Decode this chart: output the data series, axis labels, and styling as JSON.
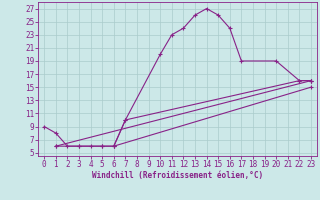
{
  "bg_color": "#cce8e8",
  "grid_color": "#aacccc",
  "line_color": "#882288",
  "xlim": [
    -0.5,
    23.5
  ],
  "ylim": [
    4.5,
    28
  ],
  "xticks": [
    0,
    1,
    2,
    3,
    4,
    5,
    6,
    7,
    8,
    9,
    10,
    11,
    12,
    13,
    14,
    15,
    16,
    17,
    18,
    19,
    20,
    21,
    22,
    23
  ],
  "yticks": [
    5,
    7,
    9,
    11,
    13,
    15,
    17,
    19,
    21,
    23,
    25,
    27
  ],
  "xlabel": "Windchill (Refroidissement éolien,°C)",
  "line1_x": [
    0,
    1,
    2,
    3,
    4,
    5,
    6,
    7,
    10,
    11,
    12,
    13,
    14,
    15,
    16,
    17,
    20,
    22,
    23
  ],
  "line1_y": [
    9,
    8,
    6,
    6,
    6,
    6,
    6,
    10,
    20,
    23,
    24,
    26,
    27,
    26,
    24,
    19,
    19,
    16,
    16
  ],
  "line2_x": [
    1,
    3,
    5,
    6,
    7,
    22,
    23
  ],
  "line2_y": [
    6,
    6,
    6,
    6,
    10,
    16,
    16
  ],
  "line3_x": [
    1,
    23
  ],
  "line3_y": [
    6,
    16
  ],
  "line4_x": [
    6,
    23
  ],
  "line4_y": [
    6,
    15
  ],
  "marker": "+",
  "markersize": 3,
  "linewidth": 0.8,
  "tick_fontsize": 5.5,
  "xlabel_fontsize": 5.5
}
